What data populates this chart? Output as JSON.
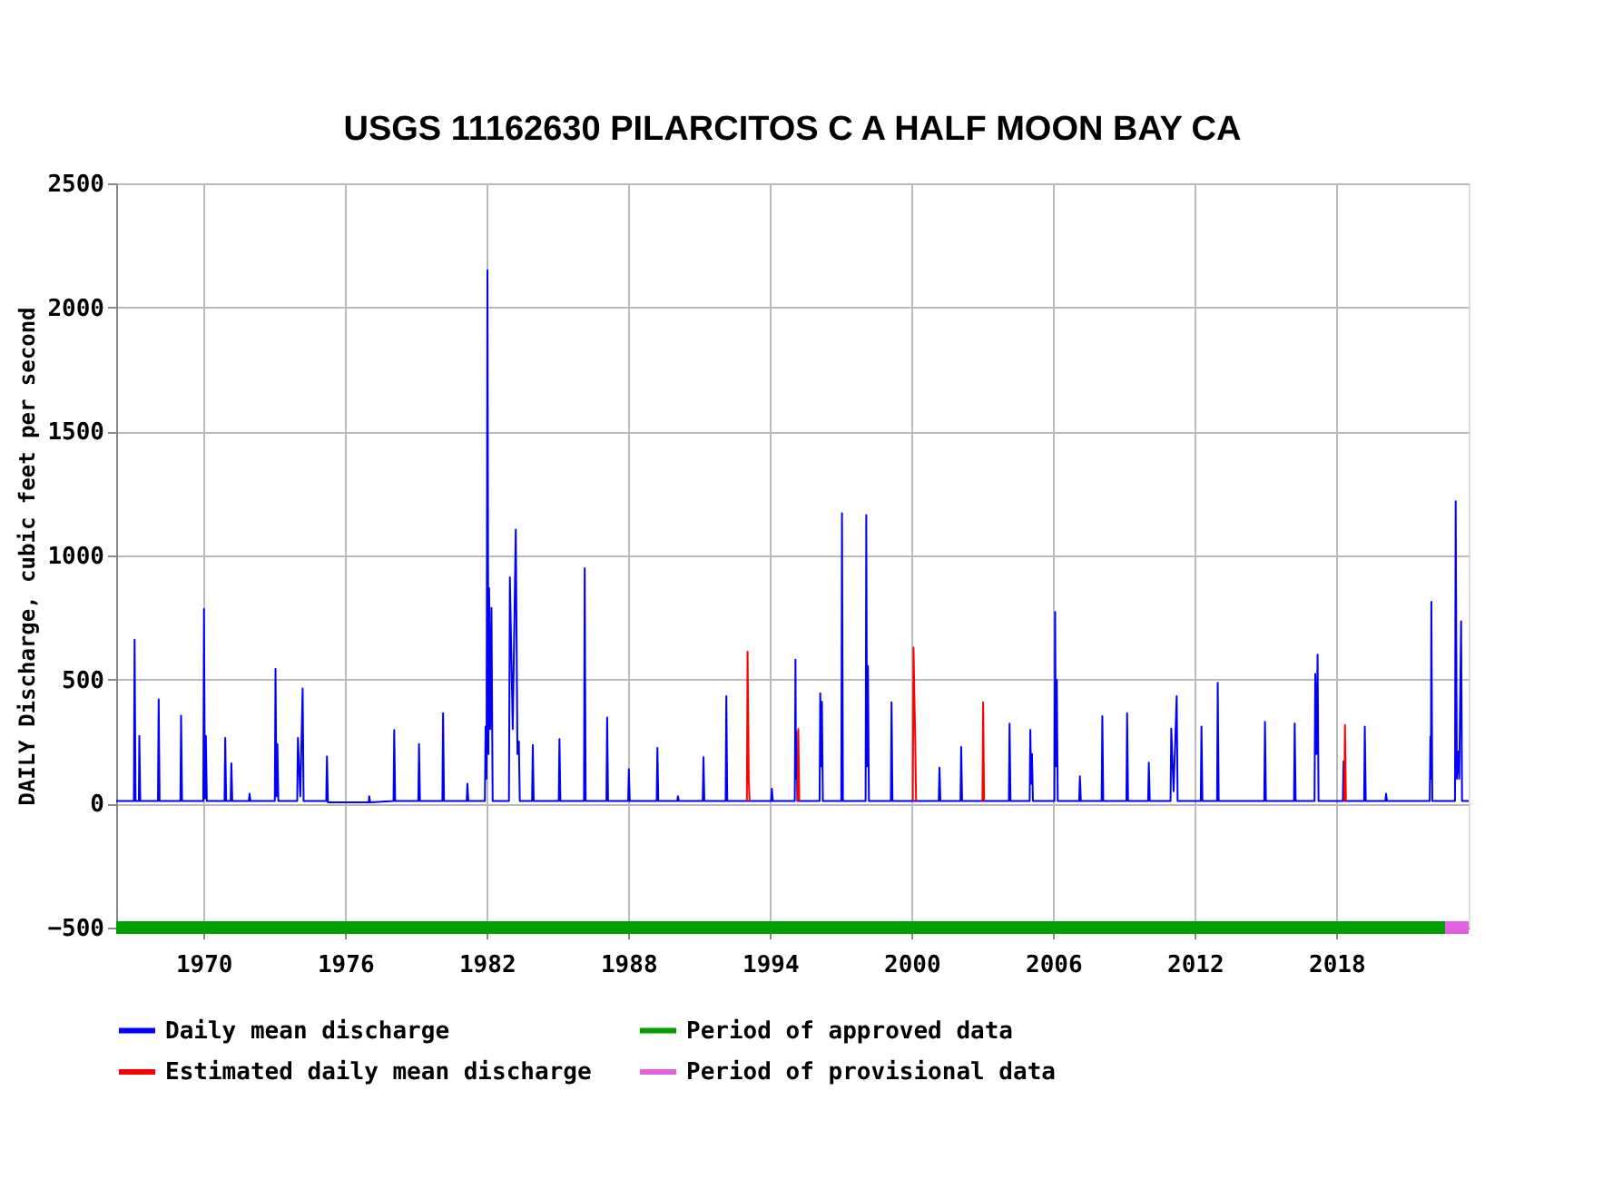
{
  "chart_data": {
    "type": "line",
    "title": "USGS 11162630 PILARCITOS C A HALF MOON BAY CA",
    "ylabel": "DAILY Discharge, cubic feet per second",
    "xlim": [
      1966.3,
      2023.6
    ],
    "xticks": [
      1970,
      1976,
      1982,
      1988,
      1994,
      2000,
      2006,
      2012,
      2018
    ],
    "ylim": [
      -500,
      2500
    ],
    "yticks": [
      -500,
      0,
      500,
      1000,
      1500,
      2000,
      2500
    ],
    "grid": true,
    "legend": "bottom",
    "marker": "none",
    "line_style": "solid",
    "series": [
      {
        "name": "Daily mean discharge",
        "color": "#0000ff",
        "type": "line",
        "x": [
          1966.3,
          1967.05,
          1967.08,
          1967.12,
          1967.26,
          1967.28,
          1967.32,
          1968.07,
          1968.1,
          1968.14,
          1969.02,
          1969.05,
          1969.09,
          1969.99,
          1970.02,
          1970.06,
          1970.1,
          1970.14,
          1970.89,
          1970.92,
          1970.96,
          1971.15,
          1971.18,
          1971.22,
          1971.92,
          1971.95,
          1971.99,
          1973.02,
          1973.05,
          1973.09,
          1973.13,
          1973.17,
          1973.97,
          1974.0,
          1974.1,
          1974.2,
          1974.24,
          1975.2,
          1975.23,
          1975.27,
          1976.9,
          1977.0,
          1977.02,
          1977.06,
          1978.05,
          1978.08,
          1978.12,
          1979.1,
          1979.13,
          1979.17,
          1980.12,
          1980.15,
          1980.19,
          1981.15,
          1981.18,
          1981.22,
          1981.92,
          1981.95,
          1981.99,
          1982.03,
          1982.07,
          1982.1,
          1982.15,
          1982.2,
          1982.25,
          1982.94,
          1982.98,
          1983.1,
          1983.23,
          1983.3,
          1983.36,
          1983.4,
          1983.92,
          1983.95,
          1983.99,
          1985.05,
          1985.08,
          1985.12,
          1986.12,
          1986.15,
          1986.19,
          1987.07,
          1987.1,
          1987.14,
          1987.99,
          1988.02,
          1988.06,
          1989.2,
          1989.23,
          1989.27,
          1990.07,
          1990.1,
          1990.14,
          1991.15,
          1991.18,
          1991.22,
          1992.12,
          1992.15,
          1992.19,
          1994.05,
          1994.08,
          1994.12,
          1995.05,
          1995.08,
          1995.1,
          1995.12,
          1995.16,
          1996.1,
          1996.13,
          1996.17,
          1996.2,
          1996.24,
          1997.02,
          1997.05,
          1997.09,
          1998.05,
          1998.08,
          1998.11,
          1998.15,
          1998.19,
          1999.12,
          1999.15,
          1999.19,
          2001.15,
          2001.18,
          2001.22,
          2002.07,
          2002.1,
          2002.14,
          2004.12,
          2004.15,
          2004.19,
          2005.0,
          2005.03,
          2005.06,
          2005.1,
          2005.14,
          2006.05,
          2006.08,
          2006.11,
          2006.15,
          2006.19,
          2007.1,
          2007.13,
          2007.17,
          2008.05,
          2008.08,
          2008.12,
          2009.1,
          2009.13,
          2009.17,
          2010.02,
          2010.05,
          2010.09,
          2010.97,
          2011.0,
          2011.1,
          2011.23,
          2011.27,
          2012.25,
          2012.28,
          2012.32,
          2012.94,
          2012.97,
          2013.01,
          2014.94,
          2014.97,
          2015.01,
          2016.2,
          2016.23,
          2016.27,
          2017.07,
          2017.1,
          2017.15,
          2017.2,
          2017.24,
          2018.27,
          2018.3,
          2018.34,
          2019.17,
          2019.2,
          2019.24,
          2020.07,
          2020.1,
          2020.14,
          2021.95,
          2021.98,
          2022.0,
          2022.02,
          2022.06,
          2023.02,
          2023.05,
          2023.1,
          2023.15,
          2023.2,
          2023.28,
          2023.32,
          2023.6
        ],
        "values": [
          10,
          10,
          661,
          10,
          10,
          273,
          10,
          10,
          420,
          10,
          10,
          354,
          10,
          10,
          784,
          20,
          273,
          10,
          10,
          265,
          10,
          10,
          162,
          10,
          10,
          40,
          10,
          10,
          543,
          30,
          240,
          10,
          10,
          265,
          30,
          464,
          10,
          10,
          190,
          5,
          5,
          5,
          30,
          5,
          10,
          297,
          10,
          10,
          240,
          10,
          10,
          364,
          10,
          10,
          80,
          10,
          10,
          310,
          100,
          2150,
          200,
          868,
          300,
          789,
          10,
          10,
          912,
          300,
          1104,
          200,
          250,
          10,
          10,
          236,
          10,
          10,
          260,
          10,
          10,
          949,
          10,
          10,
          347,
          10,
          10,
          138,
          10,
          10,
          224,
          10,
          10,
          30,
          10,
          10,
          187,
          10,
          10,
          433,
          10,
          10,
          60,
          10,
          10,
          580,
          100,
          290,
          10,
          10,
          445,
          150,
          410,
          10,
          10,
          1170,
          10,
          10,
          1163,
          150,
          555,
          10,
          10,
          408,
          10,
          10,
          145,
          10,
          10,
          228,
          10,
          10,
          322,
          10,
          10,
          297,
          80,
          200,
          10,
          10,
          772,
          150,
          499,
          10,
          10,
          110,
          10,
          10,
          352,
          10,
          10,
          364,
          10,
          10,
          165,
          10,
          10,
          302,
          50,
          433,
          10,
          10,
          310,
          10,
          10,
          487,
          10,
          10,
          330,
          10,
          10,
          322,
          10,
          10,
          523,
          200,
          600,
          10,
          10,
          170,
          10,
          10,
          310,
          10,
          10,
          40,
          10,
          10,
          270,
          100,
          813,
          10,
          10,
          1219,
          100,
          210,
          100,
          735,
          10,
          10
        ]
      },
      {
        "name": "Period of approved data",
        "color": "#00a000",
        "type": "step",
        "x": [
          1966.3,
          2022.6
        ],
        "values": [
          -500,
          -500
        ]
      },
      {
        "name": "Estimated daily mean discharge",
        "color": "#ff0000",
        "type": "line",
        "x": [
          1993.02,
          1993.05,
          1993.1,
          1993.14,
          1994.0,
          1995.17,
          1995.2,
          1995.24,
          1997.5,
          2000.05,
          2000.08,
          2000.15,
          2000.19,
          2001.5,
          2003.0,
          2003.03,
          2003.07,
          2010.0,
          2018.33,
          2018.36,
          2018.4
        ],
        "values": [
          10,
          612,
          90,
          10,
          null,
          10,
          300,
          10,
          null,
          10,
          629,
          270,
          10,
          null,
          10,
          408,
          10,
          null,
          10,
          317,
          10
        ]
      },
      {
        "name": "Period of provisional data",
        "color": "#e060e0",
        "type": "step",
        "x": [
          2022.6,
          2023.6
        ],
        "values": [
          -500,
          -500
        ]
      }
    ]
  }
}
